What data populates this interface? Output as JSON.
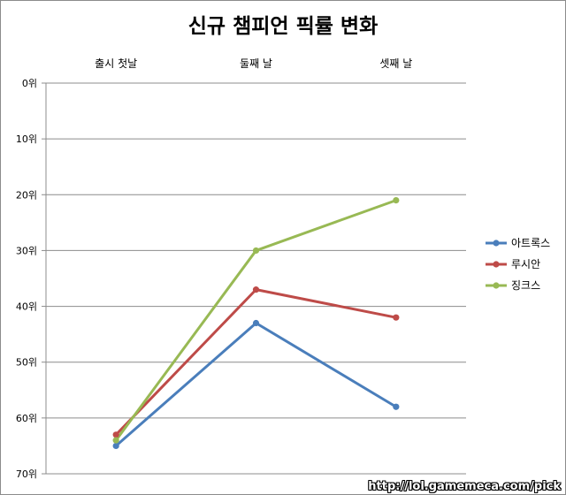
{
  "chart_data": {
    "type": "line",
    "title": "신규 챔피언 픽률 변화",
    "categories": [
      "출시 첫날",
      "둘째 날",
      "셋째 날"
    ],
    "y_axis": {
      "min": 0,
      "max": 70,
      "step": 10,
      "reversed": true,
      "tick_labels": [
        "0위",
        "10위",
        "20위",
        "30위",
        "40위",
        "50위",
        "60위",
        "70위"
      ]
    },
    "x_axis_position": "top",
    "grid": true,
    "legend": "right",
    "series": [
      {
        "name": "아트록스",
        "color": "#4a7ebb",
        "values": [
          65,
          43,
          58
        ]
      },
      {
        "name": "루시안",
        "color": "#be4b48",
        "values": [
          63,
          37,
          42
        ]
      },
      {
        "name": "징크스",
        "color": "#98b954",
        "values": [
          64,
          30,
          21
        ]
      }
    ]
  },
  "watermark": "http://lol.gamemeca.com/pick"
}
